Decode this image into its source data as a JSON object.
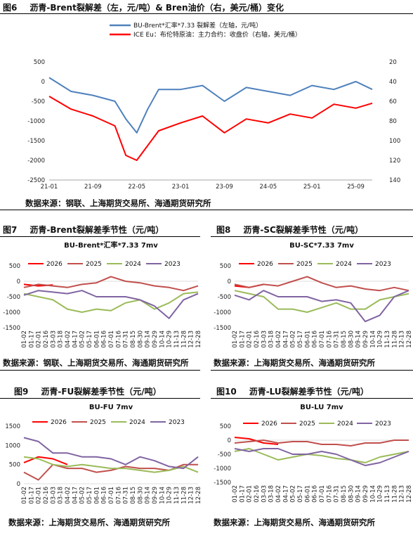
{
  "figures": {
    "fig6": {
      "num": "图6",
      "title": "沥青-Brent裂解差（左，元/吨）& Bren油价（右，美元/桶）变化"
    },
    "fig7": {
      "num": "图7",
      "title": "沥青-Brent裂解差季节性（元/吨）"
    },
    "fig8": {
      "num": "图8",
      "title": "沥青-SC裂解差季节性（元/吨）"
    },
    "fig9": {
      "num": "图9",
      "title": "沥青-FU裂解差季节性（元/吨）"
    },
    "fig10": {
      "num": "图10",
      "title": "沥青-LU裂解差季节性（元/吨）"
    }
  },
  "sources": {
    "fig6": "数据来源：钢联、上海期货交易所、海通期货研究所",
    "fig7": "数据来源：钢联、上海期货交易所、海通期货研究所",
    "fig8": "数据来源：上海期货交易所、海通期货研究所",
    "fig9": "数据来源：上海期货交易所、海通期货研究所",
    "fig10": "数据来源：上海期货交易所、海通期货研究所"
  },
  "colors": {
    "blue": "#4f81bd",
    "red": "#ff0000",
    "s2026": "#ff0000",
    "s2025": "#c0504d",
    "s2024": "#9bbb59",
    "s2023": "#8064a2"
  },
  "chart_data": [
    {
      "id": "fig6",
      "type": "line",
      "series": [
        {
          "name": "BU-Brent*汇率*7.33 裂解差（左轴，元/吨）",
          "axis": "left",
          "color": "#4f81bd",
          "x": [
            "2021-01",
            "2021-05",
            "2021-09",
            "2022-01",
            "2022-03",
            "2022-05",
            "2022-07",
            "2022-09",
            "2023-01",
            "2023-05",
            "2023-09",
            "2024-01",
            "2024-05",
            "2024-09",
            "2025-01",
            "2025-05",
            "2025-09",
            "2025-12"
          ],
          "values": [
            100,
            -250,
            -350,
            -500,
            -950,
            -1300,
            -700,
            -200,
            -200,
            -100,
            -500,
            -150,
            -250,
            -350,
            -100,
            -200,
            0,
            -200
          ]
        },
        {
          "name": "ICE Eu：布伦特原油：主力合约：收盘价（右轴，美元/桶）",
          "axis": "right",
          "color": "#ff0000",
          "x": [
            "2021-01",
            "2021-05",
            "2021-09",
            "2022-01",
            "2022-03",
            "2022-05",
            "2022-07",
            "2022-09",
            "2023-01",
            "2023-05",
            "2023-09",
            "2024-01",
            "2024-05",
            "2024-09",
            "2025-01",
            "2025-05",
            "2025-09",
            "2025-12"
          ],
          "values": [
            55,
            68,
            75,
            85,
            115,
            120,
            105,
            90,
            82,
            75,
            92,
            78,
            82,
            73,
            77,
            63,
            67,
            62
          ]
        }
      ],
      "x_ticks": [
        "21-01",
        "21-09",
        "22-05",
        "23-01",
        "23-09",
        "24-05",
        "25-01",
        "25-09"
      ],
      "y_left_ticks": [
        500,
        0,
        -500,
        -1000,
        -1500,
        -2000,
        -2500
      ],
      "y_right_ticks": [
        20,
        40,
        60,
        80,
        100,
        120,
        140
      ],
      "ylim_left": [
        -2500,
        500
      ],
      "y_right_range": [
        20,
        140
      ],
      "legend": "top"
    },
    {
      "id": "fig7",
      "type": "line",
      "title": "BU-Brent*汇率*7.33 7mv",
      "x_ticks": [
        "01-02",
        "01-17",
        "02-01",
        "02-16",
        "03-03",
        "03-18",
        "04-02",
        "04-17",
        "05-02",
        "05-17",
        "06-01",
        "06-16",
        "07-01",
        "07-16",
        "07-31",
        "08-15",
        "08-30",
        "09-14",
        "09-29",
        "10-14",
        "10-29",
        "11-13",
        "11-28",
        "12-13",
        "12-28"
      ],
      "y_ticks": [
        500,
        0,
        -500,
        -1000,
        -1500
      ],
      "ylim": [
        -1500,
        500
      ],
      "series": [
        {
          "name": "2026",
          "color": "#ff0000",
          "values": [
            -100,
            -150,
            -120
          ]
        },
        {
          "name": "2025",
          "color": "#c0504d",
          "values": [
            -200,
            -100,
            -150,
            -200,
            -100,
            -50,
            150,
            0,
            -50,
            -150,
            -200,
            -300,
            -150
          ]
        },
        {
          "name": "2024",
          "color": "#9bbb59",
          "values": [
            -400,
            -500,
            -600,
            -900,
            -1000,
            -900,
            -950,
            -700,
            -600,
            -900,
            -700,
            -400,
            -350
          ]
        },
        {
          "name": "2023",
          "color": "#8064a2",
          "values": [
            -450,
            -300,
            -350,
            -400,
            -300,
            -500,
            -500,
            -500,
            -600,
            -800,
            -1200,
            -600,
            -400
          ]
        }
      ]
    },
    {
      "id": "fig8",
      "type": "line",
      "title": "BU-SC*7.33 7mv",
      "x_ticks": [
        "01-02",
        "01-17",
        "02-01",
        "02-16",
        "03-03",
        "03-18",
        "04-02",
        "04-17",
        "05-02",
        "05-17",
        "06-01",
        "06-16",
        "07-01",
        "07-16",
        "07-31",
        "08-15",
        "08-30",
        "09-14",
        "09-29",
        "10-14",
        "10-29",
        "11-13",
        "11-28",
        "12-13",
        "12-28"
      ],
      "y_ticks": [
        500,
        0,
        -500,
        -1000,
        -1500
      ],
      "ylim": [
        -1500,
        500
      ],
      "series": [
        {
          "name": "2026",
          "color": "#ff0000",
          "values": [
            -150,
            -200,
            -100
          ]
        },
        {
          "name": "2025",
          "color": "#c0504d",
          "values": [
            -100,
            -200,
            -100,
            -150,
            0,
            150,
            -50,
            -200,
            -150,
            -250,
            -300,
            -200,
            -300
          ]
        },
        {
          "name": "2024",
          "color": "#9bbb59",
          "values": [
            -300,
            -400,
            -500,
            -900,
            -900,
            -1000,
            -850,
            -700,
            -900,
            -900,
            -600,
            -500,
            -400
          ]
        },
        {
          "name": "2023",
          "color": "#8064a2",
          "values": [
            -450,
            -600,
            -300,
            -500,
            -500,
            -500,
            -650,
            -600,
            -700,
            -1300,
            -1100,
            -500,
            -300
          ]
        }
      ]
    },
    {
      "id": "fig9",
      "type": "line",
      "title": "BU-FU 7mv",
      "x_ticks": [
        "01-02",
        "01-17",
        "02-01",
        "02-16",
        "03-03",
        "03-18",
        "04-02",
        "04-17",
        "05-02",
        "05-17",
        "06-01",
        "06-16",
        "07-01",
        "07-16",
        "07-31",
        "08-15",
        "08-30",
        "09-14",
        "09-29",
        "10-14",
        "10-29",
        "11-13",
        "11-28",
        "12-13",
        "12-28"
      ],
      "y_ticks": [
        1500,
        1000,
        500,
        0
      ],
      "ylim": [
        0,
        1500
      ],
      "series": [
        {
          "name": "2026",
          "color": "#ff0000",
          "values": [
            550,
            700,
            650,
            500
          ]
        },
        {
          "name": "2025",
          "color": "#c0504d",
          "values": [
            300,
            100,
            500,
            400,
            400,
            300,
            350,
            450,
            400,
            400,
            350,
            500,
            500
          ]
        },
        {
          "name": "2024",
          "color": "#9bbb59",
          "values": [
            700,
            650,
            500,
            450,
            500,
            450,
            400,
            400,
            350,
            300,
            350,
            450,
            300
          ]
        },
        {
          "name": "2023",
          "color": "#8064a2",
          "values": [
            1200,
            1100,
            800,
            800,
            700,
            700,
            650,
            500,
            700,
            600,
            450,
            400,
            700
          ]
        }
      ]
    },
    {
      "id": "fig10",
      "type": "line",
      "title": "BU-LU 7mv",
      "x_ticks": [
        "01-02",
        "01-17",
        "02-01",
        "02-16",
        "03-03",
        "03-18",
        "04-02",
        "04-17",
        "05-02",
        "05-17",
        "06-01",
        "06-16",
        "07-01",
        "07-16",
        "07-31",
        "08-15",
        "08-30",
        "09-14",
        "09-29",
        "10-14",
        "10-29",
        "11-13",
        "11-28",
        "12-13",
        "12-28"
      ],
      "y_ticks": [
        500,
        0,
        -500,
        -1000,
        -1500
      ],
      "ylim": [
        -1500,
        500
      ],
      "series": [
        {
          "name": "2026",
          "color": "#ff0000",
          "values": [
            100,
            50,
            -100,
            -150
          ]
        },
        {
          "name": "2025",
          "color": "#c0504d",
          "values": [
            -100,
            -50,
            0,
            -100,
            -50,
            -50,
            -150,
            -150,
            -200,
            -100,
            -100,
            0,
            0
          ]
        },
        {
          "name": "2024",
          "color": "#9bbb59",
          "values": [
            -400,
            -300,
            -500,
            -700,
            -600,
            -500,
            -550,
            -650,
            -700,
            -800,
            -600,
            -500,
            -400
          ]
        },
        {
          "name": "2023",
          "color": "#8064a2",
          "values": [
            -300,
            -400,
            -300,
            -300,
            -500,
            -500,
            -400,
            -500,
            -700,
            -900,
            -800,
            -600,
            -400
          ]
        }
      ]
    }
  ]
}
